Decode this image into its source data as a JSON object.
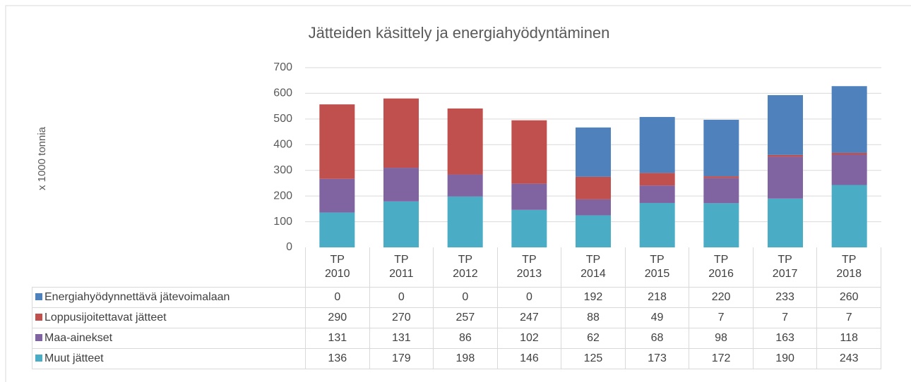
{
  "chart_data": {
    "type": "stacked_bar",
    "title": "Jätteiden käsittely ja energiahyödyntäminen",
    "y_label": "x 1000 tonnia",
    "categories": [
      "TP 2010",
      "TP 2011",
      "TP 2012",
      "TP 2013",
      "TP 2014",
      "TP 2015",
      "TP 2016",
      "TP 2017",
      "TP 2018"
    ],
    "series": [
      {
        "name": "Energiahyödynnettävä jätevoimalaan",
        "color": "#4f81bd",
        "values": [
          0,
          0,
          0,
          0,
          192,
          218,
          220,
          233,
          260
        ]
      },
      {
        "name": "Loppusijoitettavat jätteet",
        "color": "#c0504d",
        "values": [
          290,
          270,
          257,
          247,
          88,
          49,
          7,
          7,
          7
        ]
      },
      {
        "name": "Maa-ainekset",
        "color": "#8064a2",
        "values": [
          131,
          131,
          86,
          102,
          62,
          68,
          98,
          163,
          118
        ]
      },
      {
        "name": "Muut jätteet",
        "color": "#4bacc6",
        "values": [
          136,
          179,
          198,
          146,
          125,
          173,
          172,
          190,
          243
        ]
      }
    ],
    "ylim": [
      0,
      700
    ],
    "yticks": [
      0,
      100,
      200,
      300,
      400,
      500,
      600,
      700
    ],
    "grid": true
  }
}
